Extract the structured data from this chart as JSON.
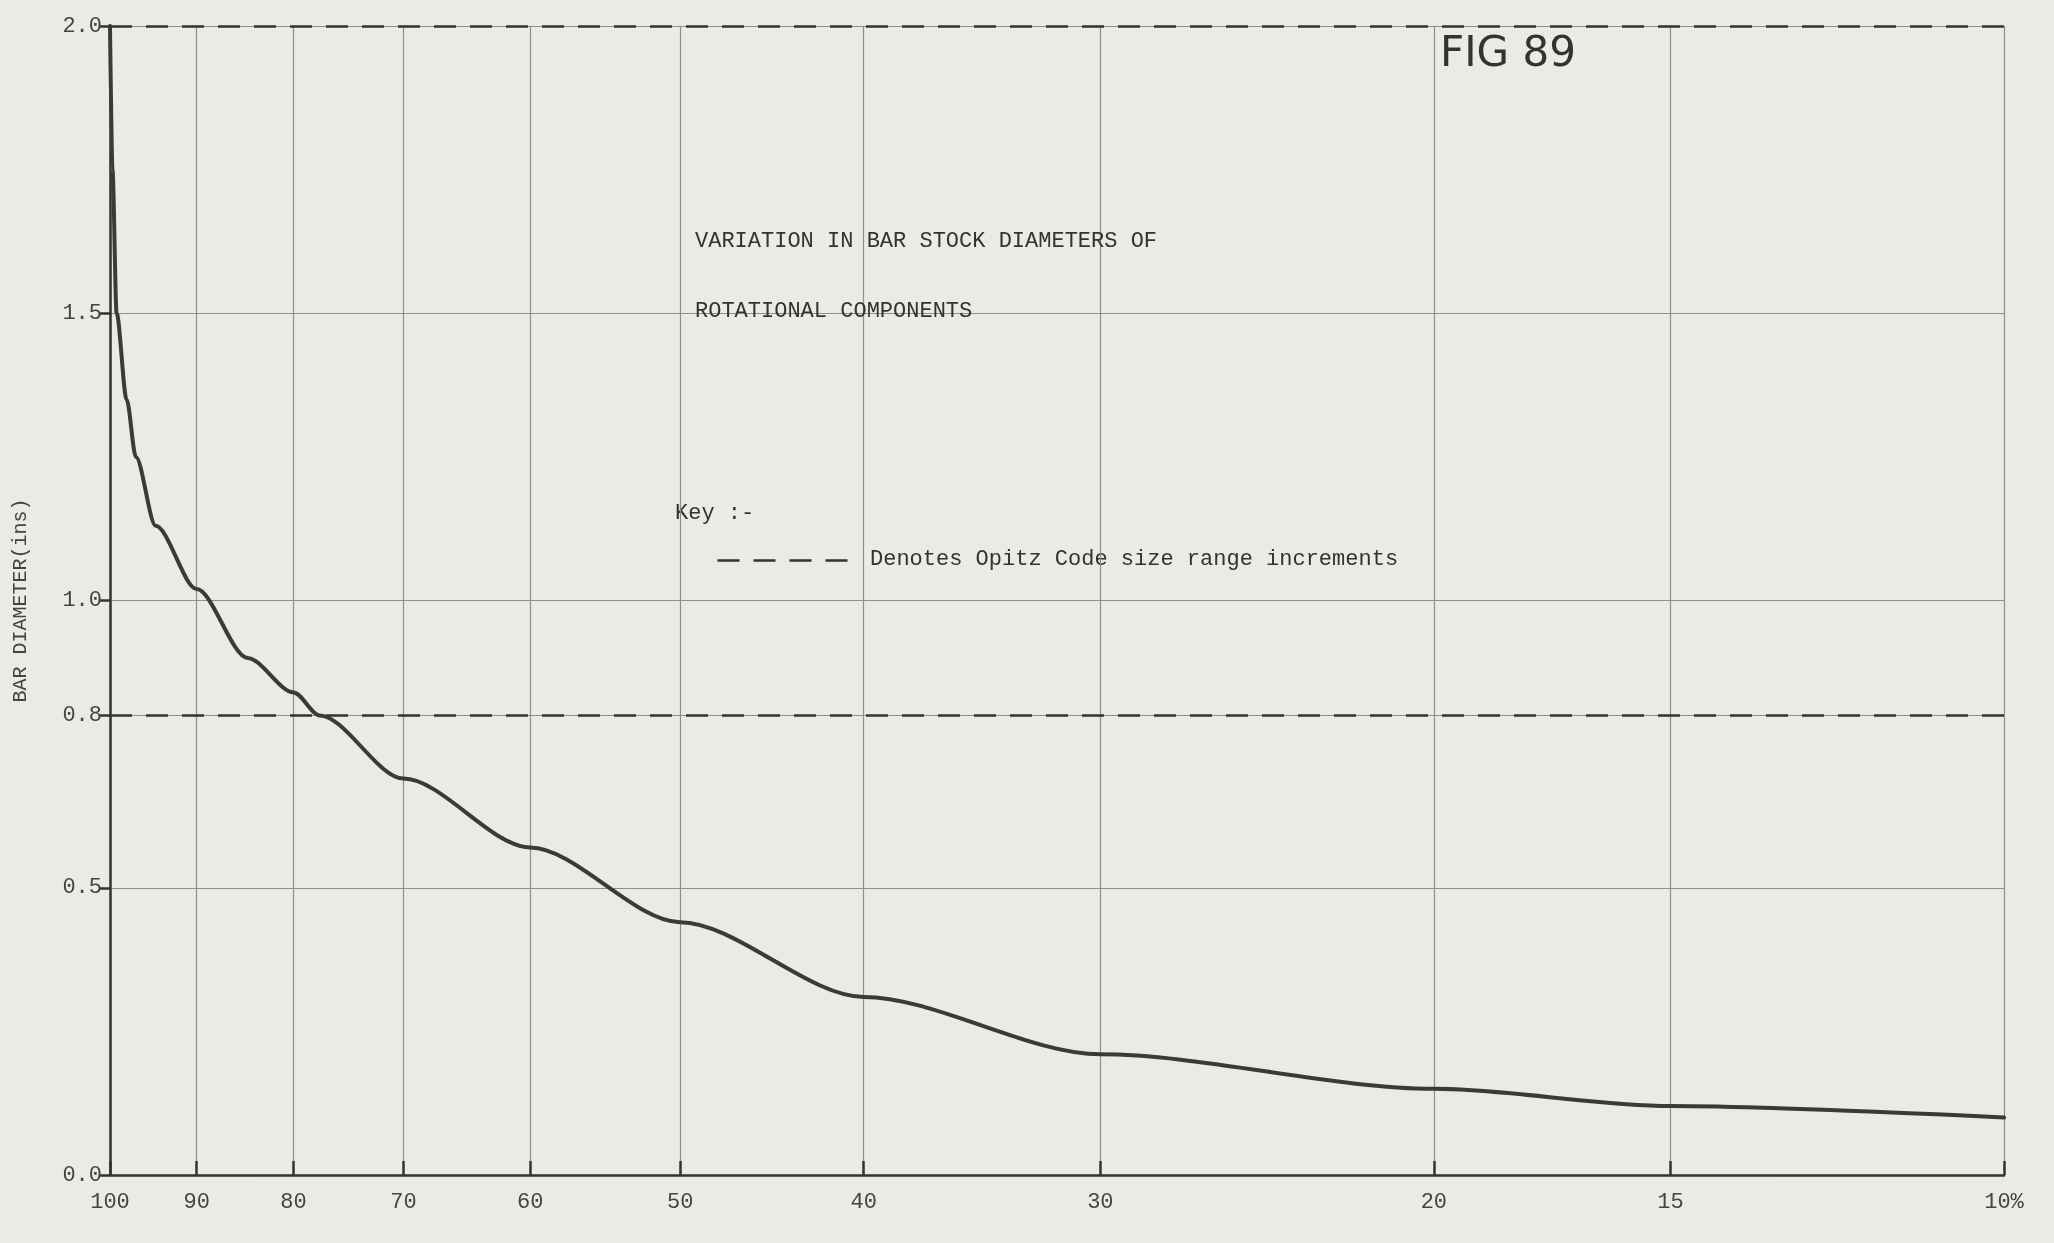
{
  "chart_data": {
    "type": "line",
    "title": "VARIATION IN BAR STOCK DIAMETERS OF",
    "subtitle": "ROTATIONAL COMPONENTS",
    "ylabel": "BAR DIAMETER(ins)",
    "annotations": [
      "FIG 89",
      "Key :-",
      "Denotes Opitz Code size range increments"
    ],
    "x": [
      100,
      99.7,
      99.2,
      98,
      96.9,
      94.6,
      90,
      84.6,
      80,
      77.5,
      70,
      60,
      50,
      40,
      30,
      20,
      15,
      10
    ],
    "series": [
      {
        "color": "#3a3a3a",
        "values": [
          2.0,
          1.75,
          1.5,
          1.35,
          1.25,
          1.13,
          1.02,
          0.9,
          0.84,
          0.8,
          0.69,
          0.57,
          0.44,
          0.31,
          0.21,
          0.15,
          0.12,
          0.1
        ]
      }
    ],
    "log": "x",
    "xlim": [
      100,
      10
    ],
    "xticks": [
      100,
      90,
      80,
      70,
      60,
      50,
      40,
      30,
      20,
      15,
      {
        "value": 10,
        "label": "10%"
      }
    ],
    "ylim": [
      0,
      2
    ],
    "yticks": [
      {
        "value": 0,
        "label": "0.0"
      },
      0.5,
      0.8,
      {
        "value": 1,
        "label": "1.0"
      },
      1.5,
      {
        "value": 2,
        "label": "2.0"
      }
    ],
    "ref_lines": [
      {
        "axis": "y",
        "value": 2.0,
        "color": "#333333",
        "line_style": "dashed"
      },
      {
        "axis": "y",
        "value": 0.8,
        "color": "#333333",
        "line_style": "dashed"
      }
    ],
    "grid": true,
    "marker": "none",
    "line_style": "solid"
  }
}
